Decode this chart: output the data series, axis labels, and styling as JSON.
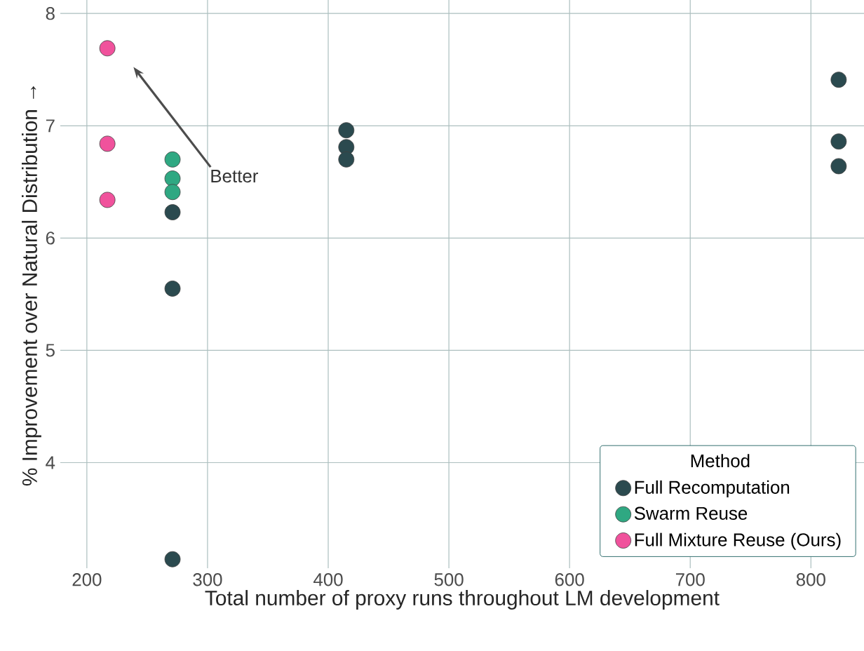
{
  "chart_data": {
    "type": "scatter",
    "xlabel": "Total number of proxy runs throughout LM development",
    "ylabel": "% Improvement over Natural Distribution →",
    "legend_title": "Method",
    "legend": "bottom right",
    "grid": true,
    "xlim": [
      178,
      844
    ],
    "ylim": [
      3.06,
      8.12
    ],
    "xticks": [
      200,
      300,
      400,
      500,
      600,
      700,
      800
    ],
    "yticks": [
      4,
      5,
      6,
      7,
      8
    ],
    "series": [
      {
        "name": "Full Recomputation",
        "color": "#2b4a4f",
        "x": [
          271,
          271,
          271,
          415,
          415,
          415,
          823,
          823,
          823
        ],
        "values": [
          6.23,
          5.55,
          3.14,
          6.96,
          6.81,
          6.7,
          7.41,
          6.86,
          6.64
        ]
      },
      {
        "name": "Swarm Reuse",
        "color": "#2fa882",
        "x": [
          271,
          271,
          271
        ],
        "values": [
          6.7,
          6.53,
          6.41
        ]
      },
      {
        "name": "Full Mixture Reuse (Ours)",
        "color": "#f0529c",
        "x": [
          217,
          217,
          217
        ],
        "values": [
          7.69,
          6.84,
          6.34
        ]
      }
    ],
    "annotations": [
      "Better"
    ]
  }
}
